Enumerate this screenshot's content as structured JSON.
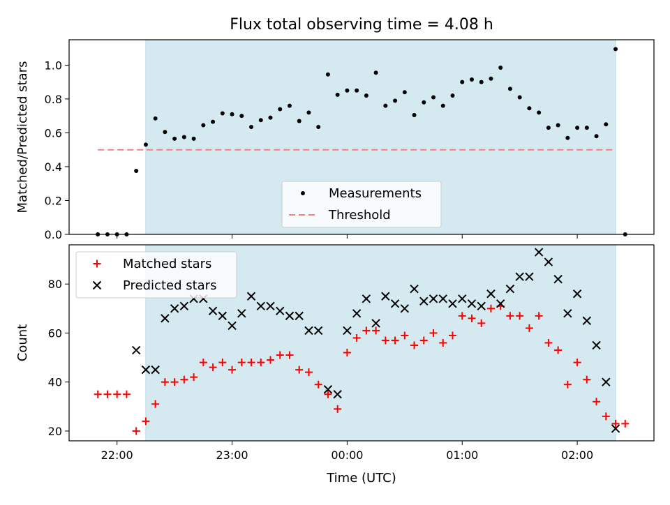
{
  "figure": {
    "title": "Flux total observing time = 4.08 h"
  },
  "chart_data": [
    {
      "type": "scatter",
      "ylabel": "Matched/Predicted stars",
      "xlim": [
        "21:35",
        "02:40"
      ],
      "ylim": [
        0,
        1.15
      ],
      "yticks": [
        0.0,
        0.2,
        0.4,
        0.6,
        0.8,
        1.0
      ],
      "ytick_labels": [
        "0.0",
        "0.2",
        "0.4",
        "0.6",
        "0.8",
        "1.0"
      ],
      "xticks": [
        "22:00",
        "23:00",
        "00:00",
        "01:00",
        "02:00"
      ],
      "shaded_region": [
        "22:15",
        "02:20"
      ],
      "shade_color": "#d4eaf0",
      "legend_position": "lower center",
      "series": [
        {
          "name": "Measurements",
          "marker": "dot",
          "color": "#000000",
          "x": [
            "21:50",
            "21:55",
            "22:00",
            "22:05",
            "22:10",
            "22:15",
            "22:20",
            "22:25",
            "22:30",
            "22:35",
            "22:40",
            "22:45",
            "22:50",
            "22:55",
            "23:00",
            "23:05",
            "23:10",
            "23:15",
            "23:20",
            "23:25",
            "23:30",
            "23:35",
            "23:40",
            "23:45",
            "23:50",
            "23:55",
            "00:00",
            "00:05",
            "00:10",
            "00:15",
            "00:20",
            "00:25",
            "00:30",
            "00:35",
            "00:40",
            "00:45",
            "00:50",
            "00:55",
            "01:00",
            "01:05",
            "01:10",
            "01:15",
            "01:20",
            "01:25",
            "01:30",
            "01:35",
            "01:40",
            "01:45",
            "01:50",
            "01:55",
            "02:00",
            "02:05",
            "02:10",
            "02:15",
            "02:20",
            "02:25"
          ],
          "y": [
            0.0,
            0.0,
            0.0,
            0.0,
            0.375,
            0.53,
            0.685,
            0.605,
            0.565,
            0.575,
            0.565,
            0.645,
            0.665,
            0.715,
            0.71,
            0.7,
            0.635,
            0.675,
            0.69,
            0.74,
            0.76,
            0.67,
            0.72,
            0.635,
            0.945,
            0.825,
            0.85,
            0.85,
            0.82,
            0.955,
            0.76,
            0.79,
            0.84,
            0.705,
            0.78,
            0.81,
            0.76,
            0.82,
            0.9,
            0.915,
            0.9,
            0.92,
            0.985,
            0.86,
            0.81,
            0.745,
            0.72,
            0.63,
            0.645,
            0.57,
            0.63,
            0.63,
            0.58,
            0.65,
            1.095,
            0.0
          ]
        },
        {
          "name": "Threshold",
          "line": "dashed",
          "color": "#f08080",
          "x": [
            "21:50",
            "02:20"
          ],
          "y": [
            0.5,
            0.5
          ]
        }
      ]
    },
    {
      "type": "scatter",
      "xlabel": "Time (UTC)",
      "ylabel": "Count",
      "xlim": [
        "21:35",
        "02:40"
      ],
      "ylim": [
        16,
        96
      ],
      "yticks": [
        20,
        40,
        60,
        80
      ],
      "ytick_labels": [
        "20",
        "40",
        "60",
        "80"
      ],
      "xticks": [
        "22:00",
        "23:00",
        "00:00",
        "01:00",
        "02:00"
      ],
      "xtick_labels": [
        "22:00",
        "23:00",
        "00:00",
        "01:00",
        "02:00"
      ],
      "shaded_region": [
        "22:15",
        "02:20"
      ],
      "shade_color": "#d4eaf0",
      "legend_position": "upper left",
      "series": [
        {
          "name": "Matched stars",
          "marker": "plus",
          "color": "#ff0000",
          "x": [
            "21:50",
            "21:55",
            "22:00",
            "22:05",
            "22:10",
            "22:15",
            "22:20",
            "22:25",
            "22:30",
            "22:35",
            "22:40",
            "22:45",
            "22:50",
            "22:55",
            "23:00",
            "23:05",
            "23:10",
            "23:15",
            "23:20",
            "23:25",
            "23:30",
            "23:35",
            "23:40",
            "23:45",
            "23:50",
            "23:55",
            "00:00",
            "00:05",
            "00:10",
            "00:15",
            "00:20",
            "00:25",
            "00:30",
            "00:35",
            "00:40",
            "00:45",
            "00:50",
            "00:55",
            "01:00",
            "01:05",
            "01:10",
            "01:15",
            "01:20",
            "01:25",
            "01:30",
            "01:35",
            "01:40",
            "01:45",
            "01:50",
            "01:55",
            "02:00",
            "02:05",
            "02:10",
            "02:15",
            "02:20",
            "02:25"
          ],
          "y": [
            35,
            35,
            35,
            35,
            20,
            24,
            31,
            40,
            40,
            41,
            42,
            48,
            46,
            48,
            45,
            48,
            48,
            48,
            49,
            51,
            51,
            45,
            44,
            39,
            35,
            29,
            52,
            58,
            61,
            61,
            57,
            57,
            59,
            55,
            57,
            60,
            56,
            59,
            67,
            66,
            64,
            70,
            71,
            67,
            67,
            62,
            67,
            56,
            53,
            39,
            48,
            41,
            32,
            26,
            23,
            23
          ]
        },
        {
          "name": "Predicted stars",
          "marker": "x",
          "color": "#000000",
          "x": [
            "22:10",
            "22:15",
            "22:20",
            "22:25",
            "22:30",
            "22:35",
            "22:40",
            "22:45",
            "22:50",
            "22:55",
            "23:00",
            "23:05",
            "23:10",
            "23:15",
            "23:20",
            "23:25",
            "23:30",
            "23:35",
            "23:40",
            "23:45",
            "23:50",
            "23:55",
            "00:00",
            "00:05",
            "00:10",
            "00:15",
            "00:20",
            "00:25",
            "00:30",
            "00:35",
            "00:40",
            "00:45",
            "00:50",
            "00:55",
            "01:00",
            "01:05",
            "01:10",
            "01:15",
            "01:20",
            "01:25",
            "01:30",
            "01:35",
            "01:40",
            "01:45",
            "01:50",
            "01:55",
            "02:00",
            "02:05",
            "02:10",
            "02:15",
            "02:20"
          ],
          "y": [
            53,
            45,
            45,
            66,
            70,
            71,
            74,
            74,
            69,
            67,
            63,
            68,
            75,
            71,
            71,
            69,
            67,
            67,
            61,
            61,
            37,
            35,
            61,
            68,
            74,
            64,
            75,
            72,
            70,
            78,
            73,
            74,
            74,
            72,
            74,
            72,
            71,
            76,
            72,
            78,
            83,
            83,
            93,
            89,
            82,
            68,
            76,
            65,
            55,
            40,
            21
          ]
        }
      ]
    }
  ]
}
